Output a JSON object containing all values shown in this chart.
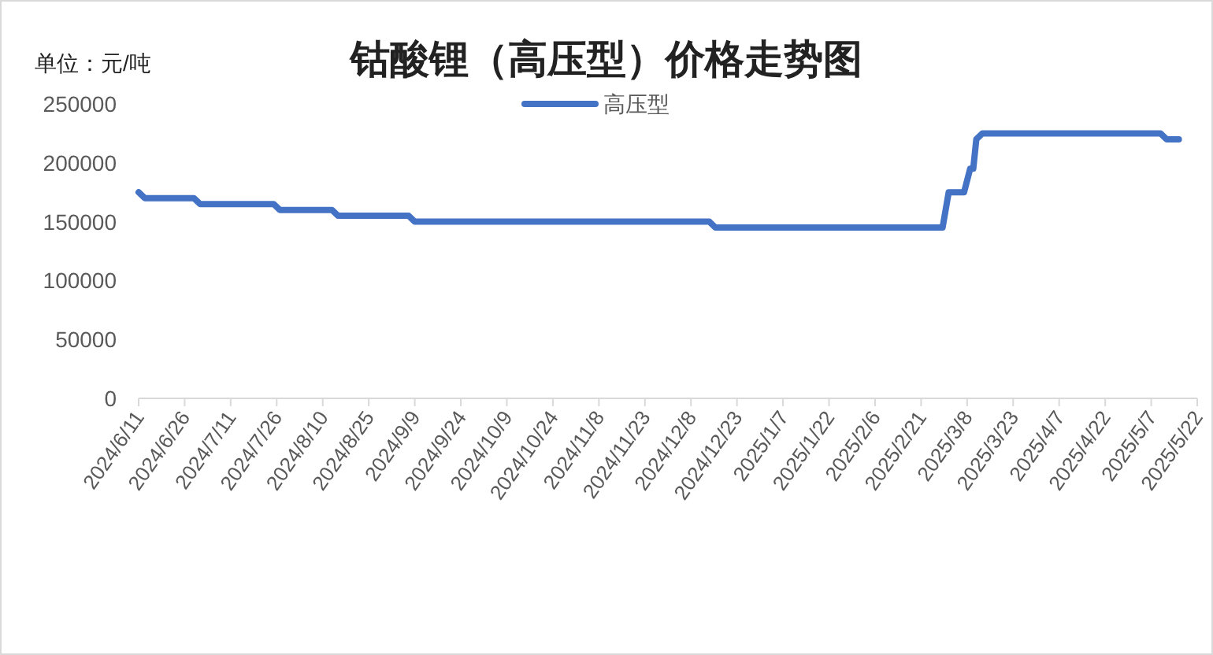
{
  "chart_data": {
    "type": "line",
    "title": "钴酸锂（高压型）价格走势图",
    "annotations": [
      "单位：元/吨"
    ],
    "legend": "top",
    "grid": false,
    "marker": "none",
    "line_style": "solid",
    "series": [
      {
        "name": "高压型",
        "color": "#4472c4",
        "x": [
          "2024-06-11",
          "2024-06-13",
          "2024-06-29",
          "2024-07-01",
          "2024-07-25",
          "2024-07-27",
          "2024-08-13",
          "2024-08-15",
          "2024-09-07",
          "2024-09-09",
          "2024-12-14",
          "2024-12-16",
          "2025-02-28",
          "2025-03-02",
          "2025-03-07",
          "2025-03-09",
          "2025-03-10",
          "2025-03-11",
          "2025-03-13",
          "2025-05-10",
          "2025-05-12",
          "2025-05-16"
        ],
        "values": [
          175000,
          170000,
          170000,
          165000,
          165000,
          160000,
          160000,
          155000,
          155000,
          150000,
          150000,
          145000,
          145000,
          175000,
          175000,
          195000,
          195000,
          220000,
          225000,
          225000,
          220000,
          220000
        ]
      }
    ],
    "xlim": [
      "2024-06-11",
      "2025-05-22"
    ],
    "xticks": [
      {
        "value": "2024-06-11",
        "label": "2024/6/11"
      },
      {
        "value": "2024-06-26",
        "label": "2024/6/26"
      },
      {
        "value": "2024-07-11",
        "label": "2024/7/11"
      },
      {
        "value": "2024-07-26",
        "label": "2024/7/26"
      },
      {
        "value": "2024-08-10",
        "label": "2024/8/10"
      },
      {
        "value": "2024-08-25",
        "label": "2024/8/25"
      },
      {
        "value": "2024-09-09",
        "label": "2024/9/9"
      },
      {
        "value": "2024-09-24",
        "label": "2024/9/24"
      },
      {
        "value": "2024-10-09",
        "label": "2024/10/9"
      },
      {
        "value": "2024-10-24",
        "label": "2024/10/24"
      },
      {
        "value": "2024-11-08",
        "label": "2024/11/8"
      },
      {
        "value": "2024-11-23",
        "label": "2024/11/23"
      },
      {
        "value": "2024-12-08",
        "label": "2024/12/8"
      },
      {
        "value": "2024-12-23",
        "label": "2024/12/23"
      },
      {
        "value": "2025-01-07",
        "label": "2025/1/7"
      },
      {
        "value": "2025-01-22",
        "label": "2025/1/22"
      },
      {
        "value": "2025-02-06",
        "label": "2025/2/6"
      },
      {
        "value": "2025-02-21",
        "label": "2025/2/21"
      },
      {
        "value": "2025-03-08",
        "label": "2025/3/8"
      },
      {
        "value": "2025-03-23",
        "label": "2025/3/23"
      },
      {
        "value": "2025-04-07",
        "label": "2025/4/7"
      },
      {
        "value": "2025-04-22",
        "label": "2025/4/22"
      },
      {
        "value": "2025-05-07",
        "label": "2025/5/7"
      },
      {
        "value": "2025-05-22",
        "label": "2025/5/22"
      }
    ],
    "ylim": [
      0,
      250000
    ],
    "yticks": [
      0,
      50000,
      100000,
      150000,
      200000,
      250000
    ]
  }
}
